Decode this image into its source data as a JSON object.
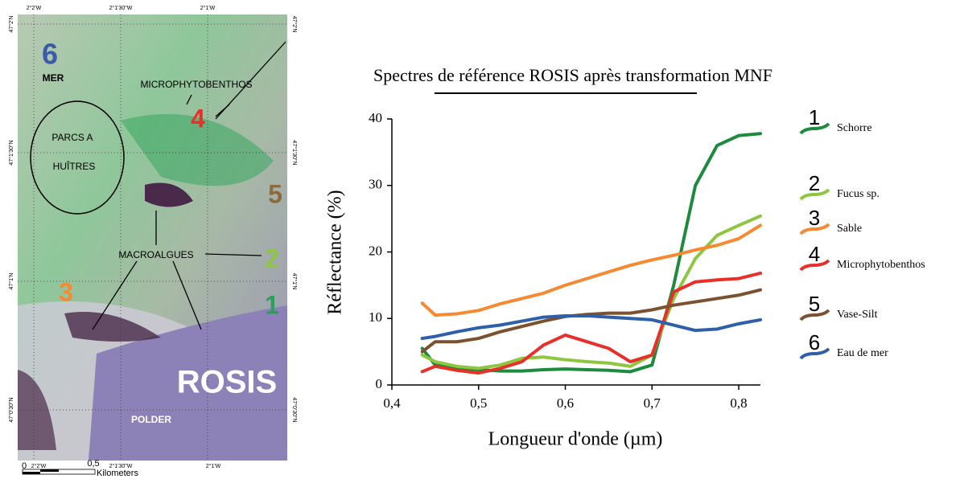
{
  "map": {
    "top_coords": [
      "2°2'W",
      "2°1'30\"W",
      "2°1'W"
    ],
    "bottom_coords": [
      "2°2'W",
      "2°1'30\"W",
      "2°1'W"
    ],
    "left_coords": [
      "47°2'N",
      "47°1'30\"N",
      "47°1'N",
      "47°0'30\"N"
    ],
    "right_coords": [
      "47°2'N",
      "47°1'30\"N",
      "47°1'N",
      "47°0'30\"N"
    ],
    "labels": {
      "six": "6",
      "mer": "MER",
      "microphyto": "MICROPHYTOBENTHOS",
      "four": "4",
      "parcs": "PARCS A",
      "huitres": "HUÎTRES",
      "five": "5",
      "macroalgues": "MACROALGUES",
      "two": "2",
      "three": "3",
      "one": "1",
      "rosis": "ROSIS",
      "polder": "POLDER"
    },
    "scale": {
      "zero": "0",
      "half": "0,5",
      "unit": "Kilometers"
    }
  },
  "chart_data": {
    "type": "line",
    "title": "Spectres de référence ROSIS après transformation MNF",
    "x_label": "Longueur d'onde (µm)",
    "y_label": "Réflectance (%)",
    "x": [
      0.435,
      0.45,
      0.475,
      0.5,
      0.525,
      0.55,
      0.575,
      0.6,
      0.625,
      0.65,
      0.675,
      0.7,
      0.725,
      0.75,
      0.775,
      0.8,
      0.825
    ],
    "xlim": [
      0.4,
      0.825
    ],
    "xticks": [
      {
        "value": 0.4,
        "label": "0,4"
      },
      {
        "value": 0.5,
        "label": "0,5"
      },
      {
        "value": 0.6,
        "label": "0,6"
      },
      {
        "value": 0.7,
        "label": "0,7"
      },
      {
        "value": 0.8,
        "label": "0,8"
      }
    ],
    "ylim": [
      0,
      40
    ],
    "yticks": [
      0,
      10,
      20,
      30,
      40
    ],
    "grid": false,
    "series": [
      {
        "number": "1",
        "name": "Schorre",
        "color": "#1e8a3e",
        "values": [
          5.5,
          3.0,
          2.5,
          2.3,
          2.1,
          2.1,
          2.3,
          2.4,
          2.3,
          2.2,
          2.0,
          3.0,
          15,
          30,
          36,
          37.5,
          37.8
        ]
      },
      {
        "number": "2",
        "name": "Fucus sp.",
        "color": "#8dc63f",
        "values": [
          4.5,
          3.5,
          2.8,
          2.5,
          3.0,
          4.0,
          4.2,
          3.8,
          3.5,
          3.3,
          2.8,
          4.5,
          13,
          19,
          22.5,
          24,
          25.4
        ]
      },
      {
        "number": "3",
        "name": "Sable",
        "color": "#f58a33",
        "values": [
          12.3,
          10.5,
          10.7,
          11.2,
          12.2,
          13.0,
          13.8,
          15,
          16,
          17,
          18,
          18.8,
          19.5,
          20.3,
          21,
          22,
          24
        ]
      },
      {
        "number": "4",
        "name": "Microphytobenthos",
        "color": "#e8302a",
        "values": [
          2.0,
          2.8,
          2.2,
          1.8,
          2.5,
          3.5,
          6.0,
          7.5,
          6.5,
          5.5,
          3.5,
          4.5,
          14,
          15.5,
          15.8,
          16,
          16.8
        ]
      },
      {
        "number": "5",
        "name": "Vase-Silt",
        "color": "#7b5230",
        "values": [
          5.0,
          6.5,
          6.5,
          7.0,
          8.0,
          8.8,
          9.6,
          10.3,
          10.6,
          10.8,
          10.8,
          11.3,
          12,
          12.5,
          13,
          13.5,
          14.3
        ]
      },
      {
        "number": "6",
        "name": "Eau de mer",
        "color": "#2e5fa8",
        "values": [
          7.0,
          7.3,
          8.0,
          8.6,
          9.0,
          9.6,
          10.2,
          10.4,
          10.4,
          10.2,
          10.0,
          9.8,
          9.0,
          8.2,
          8.4,
          9.2,
          9.8
        ]
      }
    ]
  }
}
